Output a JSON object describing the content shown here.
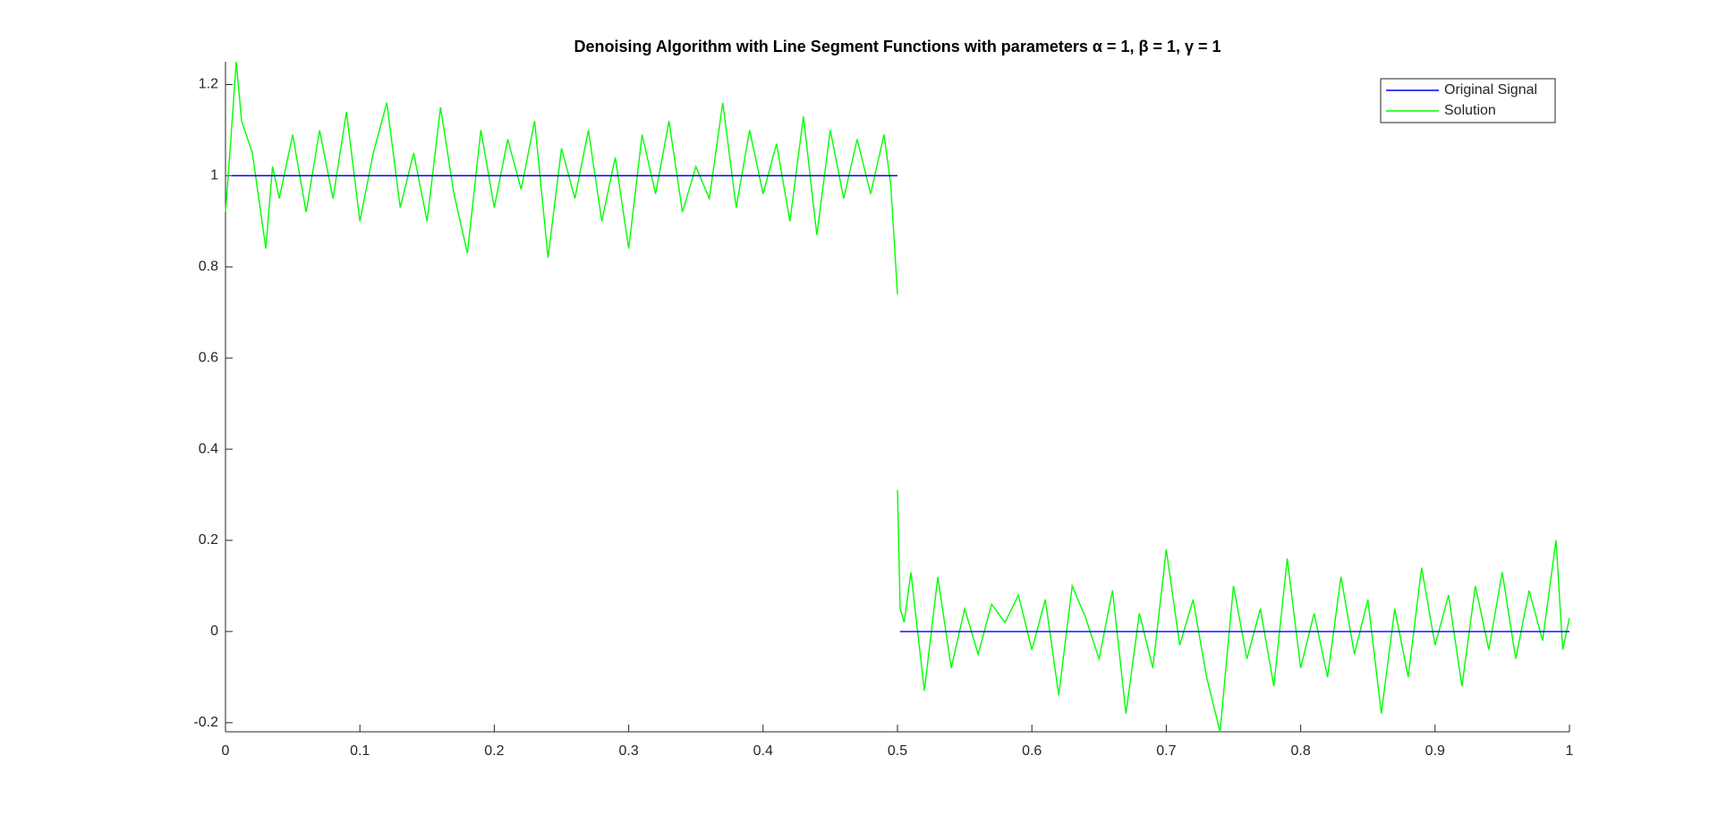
{
  "chart_data": {
    "type": "line",
    "title": "Denoising Algorithm with Line Segment Functions with parameters α = 1, β = 1, γ = 1",
    "xlim": [
      0,
      1
    ],
    "ylim": [
      -0.22,
      1.25
    ],
    "xticks": [
      0,
      0.1,
      0.2,
      0.3,
      0.4,
      0.5,
      0.6,
      0.7,
      0.8,
      0.9,
      1
    ],
    "yticks": [
      -0.2,
      0,
      0.2,
      0.4,
      0.6,
      0.8,
      1,
      1.2
    ],
    "grid": false,
    "legend": "top-right",
    "series": [
      {
        "name": "Original Signal",
        "color": "#0000ff",
        "x": [
          0.005,
          0.5,
          0.5,
          0.502,
          1
        ],
        "values": [
          1,
          1,
          null,
          0,
          0
        ]
      },
      {
        "name": "Solution",
        "color": "#00ff00",
        "x": [
          0,
          0.004,
          0.008,
          0.012,
          0.02,
          0.03,
          0.035,
          0.04,
          0.05,
          0.06,
          0.07,
          0.08,
          0.09,
          0.1,
          0.11,
          0.12,
          0.13,
          0.14,
          0.15,
          0.16,
          0.17,
          0.18,
          0.19,
          0.2,
          0.21,
          0.22,
          0.23,
          0.24,
          0.25,
          0.26,
          0.27,
          0.28,
          0.29,
          0.3,
          0.31,
          0.32,
          0.33,
          0.34,
          0.35,
          0.36,
          0.37,
          0.38,
          0.39,
          0.4,
          0.41,
          0.42,
          0.43,
          0.44,
          0.45,
          0.46,
          0.47,
          0.48,
          0.49,
          0.495,
          0.5,
          0.5,
          0.5,
          0.502,
          0.505,
          0.51,
          0.52,
          0.53,
          0.54,
          0.55,
          0.56,
          0.57,
          0.58,
          0.59,
          0.6,
          0.61,
          0.62,
          0.63,
          0.64,
          0.65,
          0.66,
          0.67,
          0.68,
          0.69,
          0.7,
          0.71,
          0.72,
          0.73,
          0.74,
          0.75,
          0.76,
          0.77,
          0.78,
          0.79,
          0.8,
          0.81,
          0.82,
          0.83,
          0.84,
          0.85,
          0.86,
          0.87,
          0.88,
          0.89,
          0.9,
          0.91,
          0.92,
          0.93,
          0.94,
          0.95,
          0.96,
          0.97,
          0.98,
          0.99,
          0.995,
          1
        ],
        "values": [
          0.92,
          1.08,
          1.25,
          1.12,
          1.05,
          0.84,
          1.02,
          0.95,
          1.09,
          0.92,
          1.1,
          0.95,
          1.14,
          0.9,
          1.05,
          1.16,
          0.93,
          1.05,
          0.9,
          1.15,
          0.96,
          0.83,
          1.1,
          0.93,
          1.08,
          0.97,
          1.12,
          0.82,
          1.06,
          0.95,
          1.1,
          0.9,
          1.04,
          0.84,
          1.09,
          0.96,
          1.12,
          0.92,
          1.02,
          0.95,
          1.16,
          0.93,
          1.1,
          0.96,
          1.07,
          0.9,
          1.13,
          0.87,
          1.1,
          0.95,
          1.08,
          0.96,
          1.09,
          0.98,
          0.74,
          null,
          0.31,
          0.05,
          0.02,
          0.13,
          -0.13,
          0.12,
          -0.08,
          0.05,
          -0.05,
          0.06,
          0.02,
          0.08,
          -0.04,
          0.07,
          -0.14,
          0.1,
          0.03,
          -0.06,
          0.09,
          -0.18,
          0.04,
          -0.08,
          0.18,
          -0.03,
          0.07,
          -0.1,
          -0.22,
          0.1,
          -0.06,
          0.05,
          -0.12,
          0.16,
          -0.08,
          0.04,
          -0.1,
          0.12,
          -0.05,
          0.07,
          -0.18,
          0.05,
          -0.1,
          0.14,
          -0.03,
          0.08,
          -0.12,
          0.1,
          -0.04,
          0.13,
          -0.06,
          0.09,
          -0.02,
          0.2,
          -0.04,
          0.03
        ]
      }
    ]
  }
}
